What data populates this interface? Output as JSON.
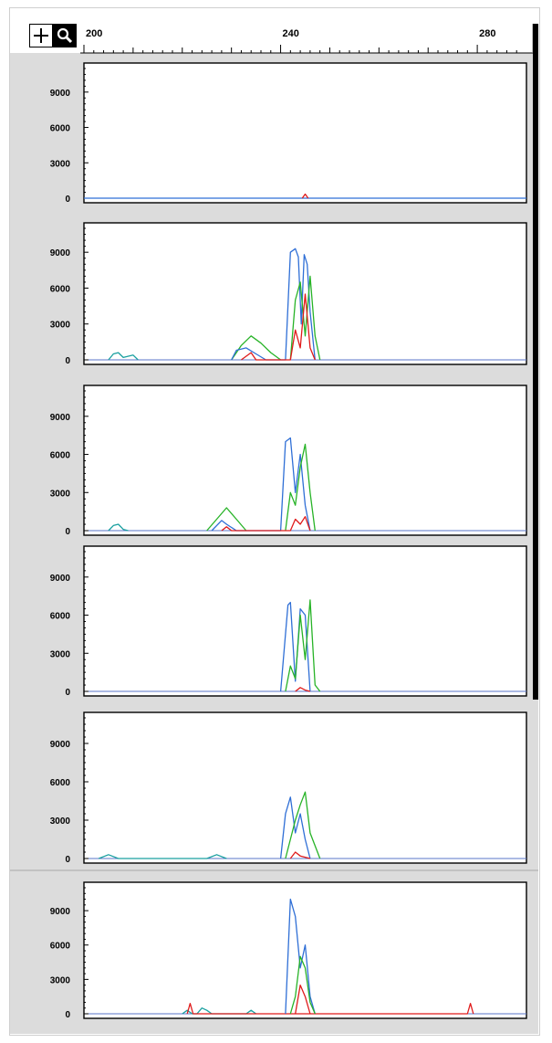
{
  "toolbar": {
    "add_icon": "plus-icon",
    "zoom_icon": "magnifier-icon"
  },
  "colors": {
    "blue": "#2f6fd6",
    "green": "#27b327",
    "red": "#e01b1b",
    "teal": "#1aa0a0",
    "panel_bg": "#dcdcdc"
  },
  "chart_data": {
    "type": "line",
    "title": "",
    "xlabel": "",
    "ylabel": "",
    "x_ticks": [
      200,
      240,
      280
    ],
    "xlim": [
      200,
      290
    ],
    "y_ticks": [
      0,
      3000,
      6000,
      9000
    ],
    "ylim": [
      0,
      11000
    ],
    "panels": [
      {
        "series": [
          {
            "name": "",
            "color": "blue",
            "points": [
              [
                200,
                0
              ],
              [
                290,
                0
              ]
            ]
          },
          {
            "name": "",
            "color": "red",
            "points": [
              [
                244.4,
                0
              ],
              [
                245,
                350
              ],
              [
                245.6,
                0
              ]
            ]
          }
        ]
      },
      {
        "series": [
          {
            "name": "",
            "color": "teal",
            "points": [
              [
                205,
                0
              ],
              [
                206,
                500
              ],
              [
                207,
                600
              ],
              [
                208,
                200
              ],
              [
                210,
                400
              ],
              [
                211,
                0
              ]
            ]
          },
          {
            "name": "",
            "color": "green",
            "points": [
              [
                230,
                0
              ],
              [
                232,
                1200
              ],
              [
                234,
                2000
              ],
              [
                236,
                1400
              ],
              [
                238,
                600
              ],
              [
                240,
                0
              ]
            ]
          },
          {
            "name": "",
            "color": "blue",
            "points": [
              [
                230,
                0
              ],
              [
                231,
                800
              ],
              [
                233,
                1000
              ],
              [
                235,
                500
              ],
              [
                237,
                0
              ],
              [
                241,
                0
              ],
              [
                242,
                9000
              ],
              [
                243,
                9300
              ],
              [
                243.6,
                8600
              ],
              [
                244.2,
                3000
              ],
              [
                244.8,
                8800
              ],
              [
                245.4,
                8000
              ],
              [
                246,
                4000
              ],
              [
                247,
                0
              ]
            ]
          },
          {
            "name": "",
            "color": "green",
            "points": [
              [
                242,
                0
              ],
              [
                243,
                5000
              ],
              [
                244,
                6500
              ],
              [
                245,
                2000
              ],
              [
                246,
                7000
              ],
              [
                247,
                2000
              ],
              [
                248,
                0
              ]
            ]
          },
          {
            "name": "",
            "color": "red",
            "points": [
              [
                232,
                0
              ],
              [
                234,
                600
              ],
              [
                235,
                0
              ],
              [
                242,
                0
              ],
              [
                243,
                2500
              ],
              [
                244,
                1000
              ],
              [
                245,
                5500
              ],
              [
                246,
                1000
              ],
              [
                247,
                0
              ]
            ]
          }
        ]
      },
      {
        "series": [
          {
            "name": "",
            "color": "teal",
            "points": [
              [
                205,
                0
              ],
              [
                206,
                400
              ],
              [
                207,
                500
              ],
              [
                208,
                100
              ],
              [
                209,
                0
              ]
            ]
          },
          {
            "name": "",
            "color": "green",
            "points": [
              [
                225,
                0
              ],
              [
                227,
                900
              ],
              [
                229,
                1800
              ],
              [
                231,
                900
              ],
              [
                233,
                0
              ]
            ]
          },
          {
            "name": "",
            "color": "blue",
            "points": [
              [
                226,
                0
              ],
              [
                228,
                800
              ],
              [
                229,
                500
              ],
              [
                231,
                0
              ],
              [
                240,
                0
              ],
              [
                241,
                7000
              ],
              [
                242,
                7300
              ],
              [
                243,
                3000
              ],
              [
                244,
                6000
              ],
              [
                245,
                2000
              ],
              [
                246,
                0
              ]
            ]
          },
          {
            "name": "",
            "color": "green",
            "points": [
              [
                241,
                0
              ],
              [
                242,
                3000
              ],
              [
                243,
                2000
              ],
              [
                244,
                5000
              ],
              [
                245,
                6800
              ],
              [
                246,
                3000
              ],
              [
                247,
                0
              ]
            ]
          },
          {
            "name": "",
            "color": "red",
            "points": [
              [
                228,
                0
              ],
              [
                229,
                300
              ],
              [
                230,
                0
              ],
              [
                242,
                0
              ],
              [
                243,
                900
              ],
              [
                244,
                500
              ],
              [
                245,
                1100
              ],
              [
                246,
                0
              ]
            ]
          }
        ]
      },
      {
        "series": [
          {
            "name": "",
            "color": "blue",
            "points": [
              [
                240,
                0
              ],
              [
                241.5,
                6800
              ],
              [
                242,
                7000
              ],
              [
                243,
                800
              ],
              [
                244,
                6500
              ],
              [
                245,
                6000
              ],
              [
                246,
                0
              ]
            ]
          },
          {
            "name": "",
            "color": "green",
            "points": [
              [
                241,
                0
              ],
              [
                242,
                2000
              ],
              [
                243,
                1000
              ],
              [
                244,
                6000
              ],
              [
                245,
                2500
              ],
              [
                246,
                7200
              ],
              [
                247,
                500
              ],
              [
                248,
                0
              ]
            ]
          },
          {
            "name": "",
            "color": "red",
            "points": [
              [
                243,
                0
              ],
              [
                244,
                300
              ],
              [
                245,
                100
              ],
              [
                246,
                0
              ]
            ]
          }
        ]
      },
      {
        "series": [
          {
            "name": "",
            "color": "teal",
            "points": [
              [
                203,
                0
              ],
              [
                205,
                300
              ],
              [
                207,
                0
              ],
              [
                225,
                0
              ],
              [
                227,
                300
              ],
              [
                229,
                0
              ]
            ]
          },
          {
            "name": "",
            "color": "blue",
            "points": [
              [
                240,
                0
              ],
              [
                241,
                3500
              ],
              [
                242,
                4800
              ],
              [
                243,
                2000
              ],
              [
                244,
                3500
              ],
              [
                245,
                1500
              ],
              [
                246,
                0
              ]
            ]
          },
          {
            "name": "",
            "color": "green",
            "points": [
              [
                241,
                0
              ],
              [
                243,
                3000
              ],
              [
                244,
                4200
              ],
              [
                245,
                5200
              ],
              [
                246,
                2000
              ],
              [
                248,
                0
              ]
            ]
          },
          {
            "name": "",
            "color": "red",
            "points": [
              [
                242,
                0
              ],
              [
                243,
                500
              ],
              [
                244,
                200
              ],
              [
                246,
                0
              ]
            ]
          }
        ]
      },
      {
        "series": [
          {
            "name": "",
            "color": "teal",
            "points": [
              [
                220,
                0
              ],
              [
                221,
                300
              ],
              [
                222,
                0
              ],
              [
                223,
                0
              ],
              [
                224,
                500
              ],
              [
                225,
                300
              ],
              [
                226,
                0
              ],
              [
                233,
                0
              ],
              [
                234,
                300
              ],
              [
                235,
                0
              ]
            ]
          },
          {
            "name": "",
            "color": "red",
            "points": [
              [
                221,
                0
              ],
              [
                221.6,
                900
              ],
              [
                222.2,
                0
              ],
              [
                278,
                0
              ],
              [
                278.6,
                900
              ],
              [
                279.2,
                0
              ]
            ]
          },
          {
            "name": "",
            "color": "blue",
            "points": [
              [
                241,
                0
              ],
              [
                242,
                10000
              ],
              [
                243,
                8500
              ],
              [
                244,
                4000
              ],
              [
                245,
                6000
              ],
              [
                246,
                1500
              ],
              [
                247,
                0
              ]
            ]
          },
          {
            "name": "",
            "color": "green",
            "points": [
              [
                242,
                0
              ],
              [
                243,
                1500
              ],
              [
                244,
                5000
              ],
              [
                245,
                4000
              ],
              [
                246,
                1000
              ],
              [
                247,
                0
              ]
            ]
          },
          {
            "name": "",
            "color": "red",
            "points": [
              [
                243,
                0
              ],
              [
                244,
                2500
              ],
              [
                245,
                1500
              ],
              [
                246,
                0
              ]
            ]
          }
        ]
      }
    ]
  }
}
